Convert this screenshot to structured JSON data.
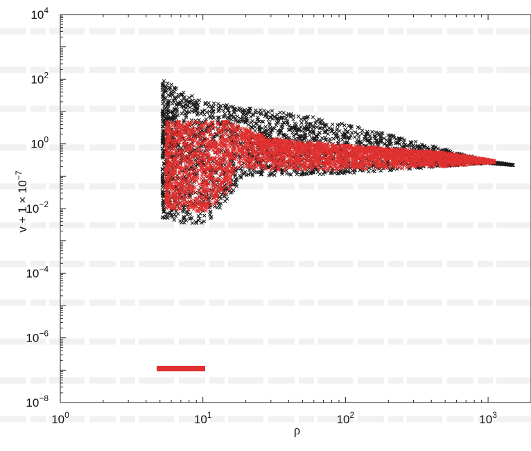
{
  "chart_data": {
    "type": "scatter",
    "title": "",
    "xlabel": "ρ",
    "ylabel": "v + 1 × 10",
    "ylabel_exponent": "−7",
    "xscale": "log",
    "yscale": "log",
    "xlim": [
      1,
      2000
    ],
    "ylim": [
      1e-08,
      10000
    ],
    "x_tick_labels": [
      {
        "base": "10",
        "exp": "0"
      },
      {
        "base": "10",
        "exp": "1"
      },
      {
        "base": "10",
        "exp": "2"
      },
      {
        "base": "10",
        "exp": "3"
      }
    ],
    "y_tick_labels": [
      {
        "base": "10",
        "exp": "−8"
      },
      {
        "base": "10",
        "exp": "−6"
      },
      {
        "base": "10",
        "exp": "−4"
      },
      {
        "base": "10",
        "exp": "−2"
      },
      {
        "base": "10",
        "exp": "0"
      },
      {
        "base": "10",
        "exp": "2"
      },
      {
        "base": "10",
        "exp": "4"
      }
    ],
    "grid": false,
    "legend": {
      "placement": "bottom-left",
      "entries": [
        {
          "color": "#e0302f"
        }
      ]
    },
    "series": [
      {
        "marker": "x",
        "color": "#1a1a1a",
        "region": {
          "x_min": 5.2,
          "x_max": 1500,
          "y_top_at_x": [
            [
              5.2,
              100
            ],
            [
              10,
              20
            ],
            [
              50,
              8
            ],
            [
              200,
              2
            ],
            [
              1000,
              0.3
            ],
            [
              1500,
              0.22
            ]
          ],
          "y_bottom_at_x": [
            [
              5.2,
              0.0045
            ],
            [
              8,
              0.003
            ],
            [
              11,
              0.004
            ],
            [
              20,
              0.1
            ],
            [
              100,
              0.12
            ],
            [
              1000,
              0.25
            ],
            [
              1500,
              0.22
            ]
          ]
        }
      },
      {
        "marker": "x",
        "color": "#e0302f",
        "region": {
          "x_min": 5.5,
          "x_max": 1100,
          "y_top_at_x": [
            [
              5.5,
              5
            ],
            [
              15,
              5
            ],
            [
              30,
              1.5
            ],
            [
              100,
              0.9
            ],
            [
              500,
              0.55
            ],
            [
              1100,
              0.3
            ]
          ],
          "y_bottom_at_x": [
            [
              5.5,
              0.01
            ],
            [
              8,
              0.008
            ],
            [
              11,
              0.008
            ],
            [
              13,
              0.02
            ],
            [
              20,
              0.08
            ],
            [
              100,
              0.1
            ],
            [
              500,
              0.15
            ],
            [
              1100,
              0.25
            ]
          ]
        }
      }
    ]
  }
}
